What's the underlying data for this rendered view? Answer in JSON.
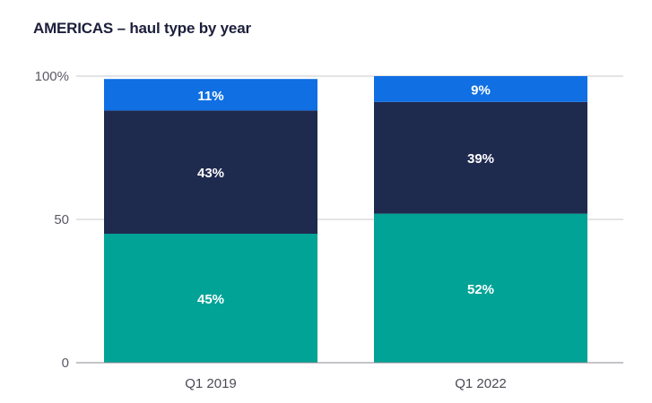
{
  "chart_data": {
    "type": "bar",
    "stacked": true,
    "title": "AMERICAS – haul type by year",
    "categories": [
      "Q1 2019",
      "Q1 2022"
    ],
    "series": [
      {
        "values": [
          45,
          52
        ],
        "labels": [
          "45%",
          "52%"
        ],
        "color": "#00A396"
      },
      {
        "values": [
          43,
          39
        ],
        "labels": [
          "43%",
          "39%"
        ],
        "color": "#1F2A4F"
      },
      {
        "values": [
          11,
          9
        ],
        "labels": [
          "11%",
          "9%"
        ],
        "color": "#0F6FE3"
      }
    ],
    "ylim": [
      0,
      100
    ],
    "yticks": [
      {
        "value": 0,
        "label": "0"
      },
      {
        "value": 50,
        "label": "50"
      },
      {
        "value": 100,
        "label": "100%"
      }
    ],
    "grid": true,
    "legend": "none"
  }
}
